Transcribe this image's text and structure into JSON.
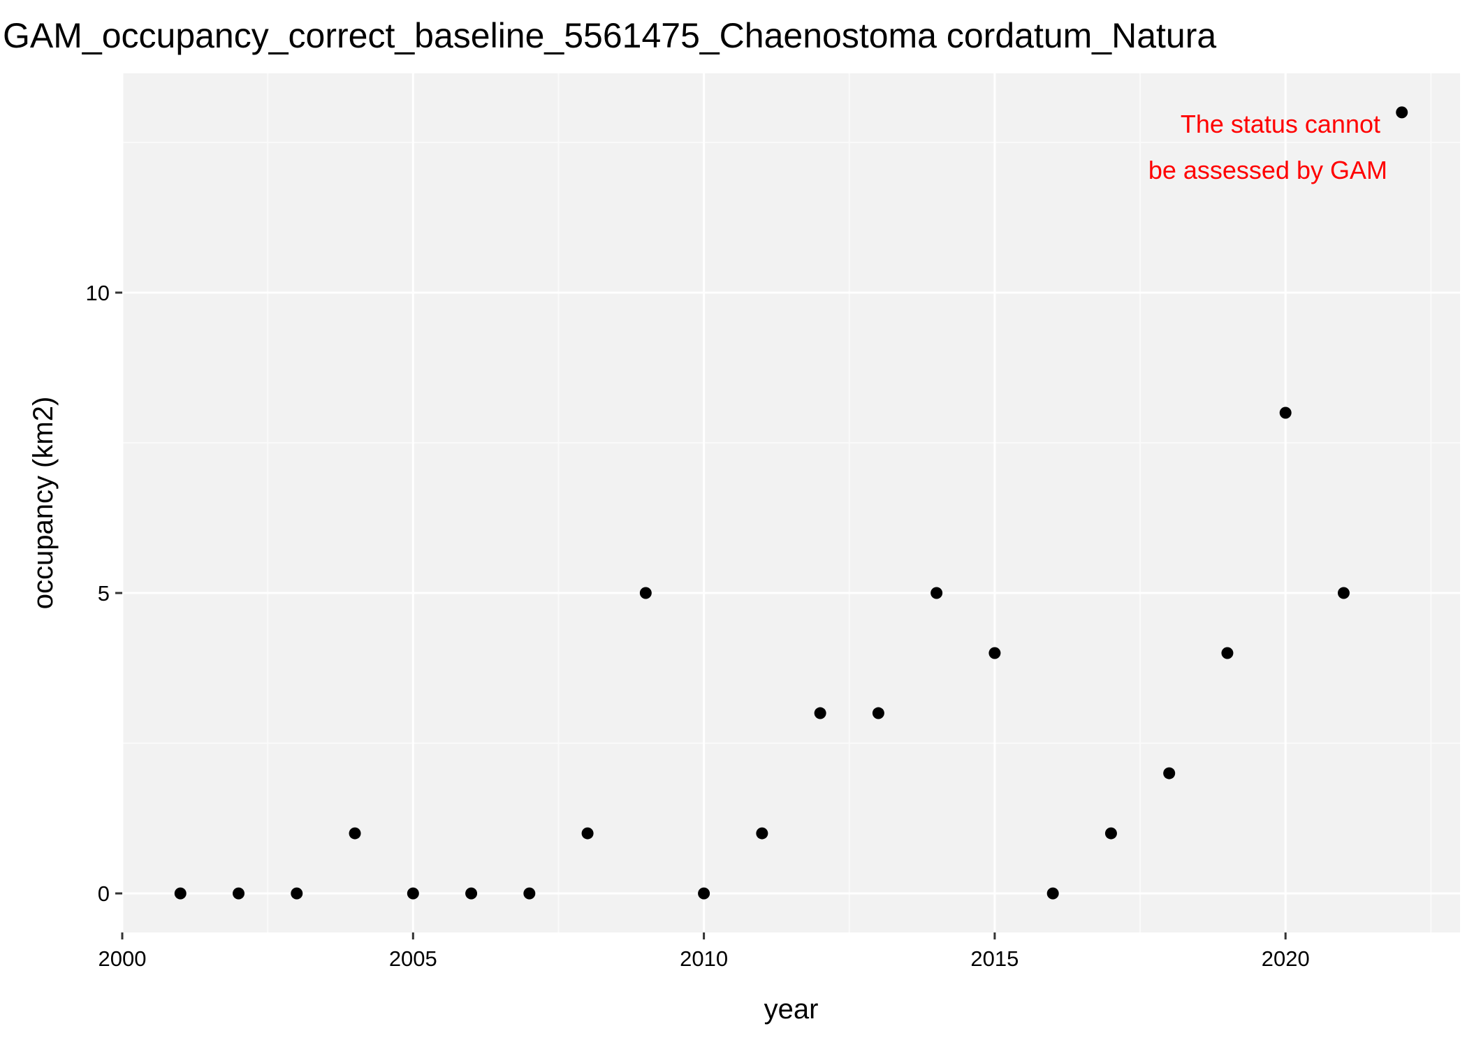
{
  "chart_data": {
    "type": "scatter",
    "title": "GAM_occupancy_correct_baseline_5561475_Chaenostoma cordatum_Natura",
    "xlabel": "year",
    "ylabel": "occupancy (km2)",
    "xlim": [
      2000,
      2023
    ],
    "ylim": [
      -0.65,
      13.65
    ],
    "x_ticks": [
      2000,
      2005,
      2010,
      2015,
      2020
    ],
    "y_ticks": [
      0,
      5,
      10
    ],
    "x_ticks_text": [
      "2000",
      "2005",
      "2010",
      "2015",
      "2020"
    ],
    "y_ticks_text": [
      "0",
      "5",
      "10"
    ],
    "grid": true,
    "series": [
      {
        "x": [
          2001,
          2002,
          2003,
          2004,
          2005,
          2006,
          2007,
          2008,
          2009,
          2010,
          2011,
          2012,
          2013,
          2014,
          2015,
          2016,
          2017,
          2018,
          2019,
          2020,
          2021,
          2022
        ],
        "y": [
          0,
          0,
          0,
          1,
          0,
          0,
          0,
          1,
          5,
          0,
          1,
          3,
          3,
          5,
          4,
          0,
          1,
          2,
          4,
          8,
          5,
          13
        ]
      }
    ],
    "annotation": {
      "lines": [
        "The status cannot",
        "be assessed by GAM"
      ],
      "color": "#ff0000"
    },
    "colors": {
      "panel": "#f2f2f2",
      "grid_major": "#ffffff",
      "grid_minor": "#fafafa",
      "point": "#000000"
    }
  }
}
